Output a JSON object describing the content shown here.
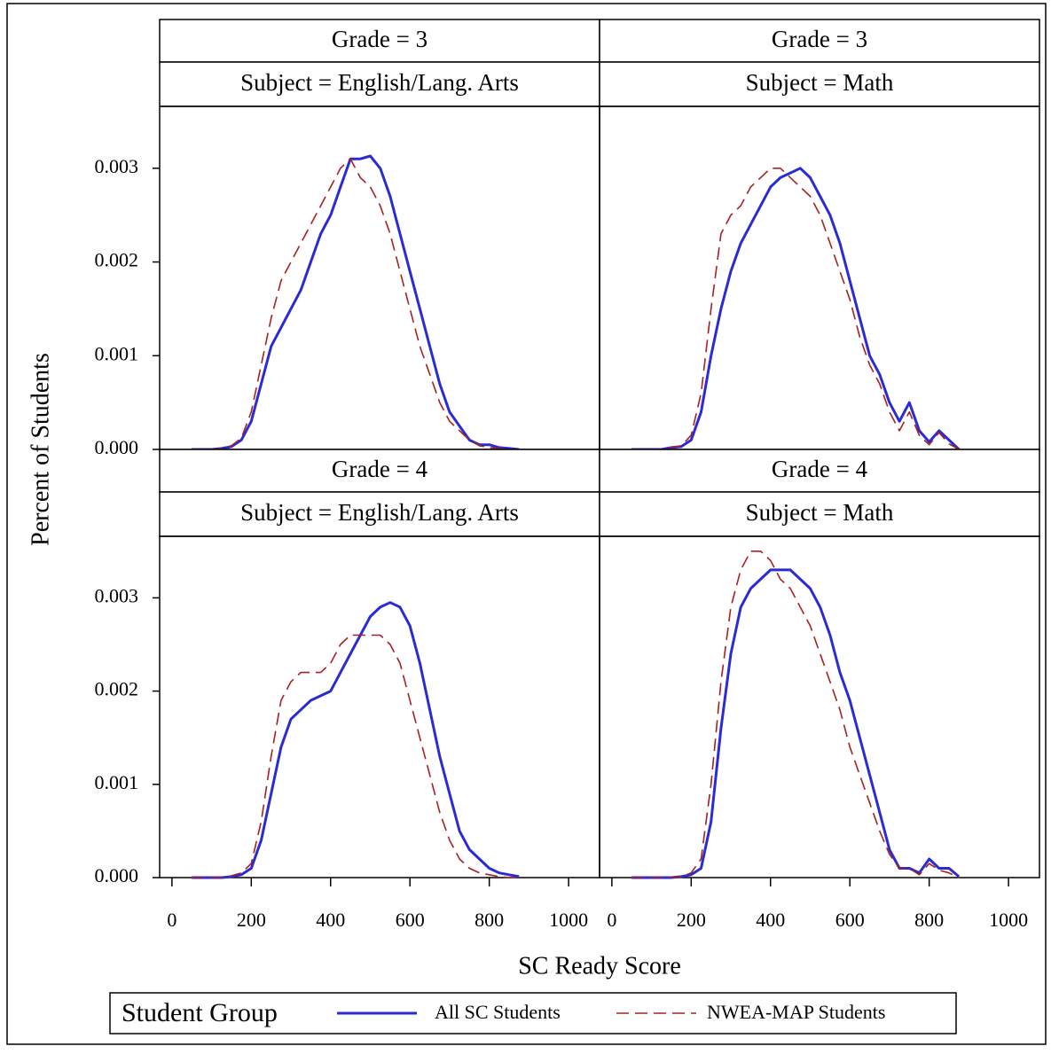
{
  "chart_data": {
    "type": "line",
    "xlabel": "SC Ready Score",
    "ylabel": "Percent of Students",
    "legend": {
      "title": "Student Group"
    },
    "x": [
      50,
      75,
      100,
      125,
      150,
      175,
      200,
      225,
      250,
      275,
      300,
      325,
      350,
      375,
      400,
      425,
      450,
      475,
      500,
      525,
      550,
      575,
      600,
      625,
      650,
      675,
      700,
      725,
      750,
      775,
      800,
      825,
      850,
      875
    ],
    "xlim": [
      -31,
      1078
    ],
    "xticks": [
      0,
      200,
      400,
      600,
      800,
      1000
    ],
    "ylim": [
      0,
      0.00366
    ],
    "yticks": [
      {
        "value": 0,
        "label": "0.000"
      },
      {
        "value": 0.001,
        "label": "0.001"
      },
      {
        "value": 0.002,
        "label": "0.002"
      },
      {
        "value": 0.003,
        "label": "0.003"
      }
    ],
    "series": [
      {
        "name": "All SC Students",
        "color": "#2b2bd4",
        "line_style": "solid"
      },
      {
        "name": "NWEA-MAP Students",
        "color": "#a82020",
        "line_style": "dashed"
      }
    ],
    "panels": [
      {
        "title": [
          "Grade = 3",
          "Subject = English/Lang. Arts"
        ],
        "series": [
          {
            "values": [
              0,
              0,
              0,
              1e-05,
              3e-05,
              0.0001,
              0.0003,
              0.0007,
              0.0011,
              0.0013,
              0.0015,
              0.0017,
              0.002,
              0.0023,
              0.0025,
              0.0028,
              0.0031,
              0.0031,
              0.00313,
              0.003,
              0.0027,
              0.0023,
              0.0019,
              0.0015,
              0.0011,
              0.0007,
              0.0004,
              0.00025,
              0.0001,
              5e-05,
              5e-05,
              2e-05,
              1e-05,
              0
            ]
          },
          {
            "values": [
              0,
              0,
              0,
              1e-05,
              4e-05,
              0.00012,
              0.0004,
              0.0009,
              0.0014,
              0.0018,
              0.002,
              0.0022,
              0.0024,
              0.0026,
              0.0028,
              0.003,
              0.0031,
              0.0029,
              0.0028,
              0.0026,
              0.0023,
              0.0019,
              0.0015,
              0.0011,
              0.0008,
              0.0005,
              0.0003,
              0.0002,
              0.0001,
              4e-05,
              2e-05,
              1e-05,
              0,
              0
            ]
          }
        ]
      },
      {
        "title": [
          "Grade = 3",
          "Subject = Math"
        ],
        "series": [
          {
            "values": [
              0,
              0,
              0,
              0,
              2e-05,
              3e-05,
              0.0001,
              0.0004,
              0.001,
              0.0015,
              0.0019,
              0.0022,
              0.0024,
              0.0026,
              0.0028,
              0.0029,
              0.00295,
              0.003,
              0.0029,
              0.0027,
              0.0025,
              0.0022,
              0.0018,
              0.0014,
              0.001,
              0.0008,
              0.0005,
              0.0003,
              0.0005,
              0.0002,
              8e-05,
              0.0002,
              0.0001,
              0
            ]
          },
          {
            "values": [
              0,
              0,
              0,
              0,
              2e-05,
              4e-05,
              0.00015,
              0.0006,
              0.0015,
              0.0023,
              0.0025,
              0.0026,
              0.0028,
              0.0029,
              0.003,
              0.003,
              0.0029,
              0.0028,
              0.0027,
              0.0025,
              0.0022,
              0.0019,
              0.0016,
              0.0012,
              0.0009,
              0.0007,
              0.0004,
              0.0002,
              0.0004,
              0.00015,
              5e-05,
              0.00018,
              6e-05,
              0
            ]
          }
        ]
      },
      {
        "title": [
          "Grade = 4",
          "Subject = English/Lang. Arts"
        ],
        "series": [
          {
            "values": [
              0,
              0,
              0,
              0,
              1e-05,
              3e-05,
              0.0001,
              0.0004,
              0.0009,
              0.0014,
              0.0017,
              0.0018,
              0.0019,
              0.00195,
              0.002,
              0.0022,
              0.0024,
              0.0026,
              0.0028,
              0.0029,
              0.00295,
              0.0029,
              0.0027,
              0.0023,
              0.0018,
              0.0013,
              0.0009,
              0.0005,
              0.0003,
              0.0002,
              0.0001,
              5e-05,
              3e-05,
              1e-05
            ]
          },
          {
            "values": [
              0,
              0,
              0,
              0,
              2e-05,
              5e-05,
              0.00015,
              0.0006,
              0.0013,
              0.0019,
              0.0021,
              0.0022,
              0.0022,
              0.0022,
              0.0023,
              0.0025,
              0.0026,
              0.0026,
              0.0026,
              0.0026,
              0.0025,
              0.0023,
              0.0019,
              0.0015,
              0.0011,
              0.0007,
              0.0004,
              0.0002,
              0.0001,
              5e-05,
              3e-05,
              1e-05,
              0,
              0
            ]
          }
        ]
      },
      {
        "title": [
          "Grade = 4",
          "Subject = Math"
        ],
        "series": [
          {
            "values": [
              0,
              0,
              0,
              0,
              0,
              1e-05,
              3e-05,
              0.0001,
              0.0006,
              0.0016,
              0.0024,
              0.0029,
              0.0031,
              0.0032,
              0.0033,
              0.0033,
              0.0033,
              0.0032,
              0.0031,
              0.0029,
              0.0026,
              0.0022,
              0.0019,
              0.0015,
              0.0011,
              0.0007,
              0.0003,
              0.0001,
              0.0001,
              5e-05,
              0.0002,
              0.0001,
              0.0001,
              1e-05
            ]
          },
          {
            "values": [
              0,
              0,
              0,
              0,
              0,
              1e-05,
              5e-05,
              0.0002,
              0.001,
              0.0021,
              0.0029,
              0.0033,
              0.0035,
              0.0035,
              0.0034,
              0.0032,
              0.0031,
              0.0029,
              0.0027,
              0.0024,
              0.0021,
              0.0018,
              0.0014,
              0.0011,
              0.0008,
              0.0005,
              0.00025,
              0.0001,
              0.0001,
              3e-05,
              0.00015,
              8e-05,
              5e-05,
              0
            ]
          }
        ]
      }
    ]
  }
}
